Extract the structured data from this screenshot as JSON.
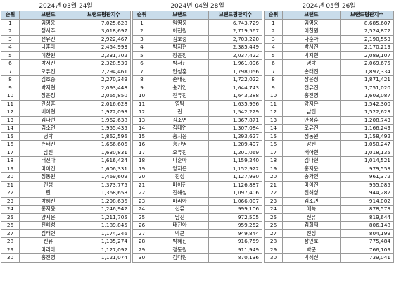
{
  "headers": {
    "rank": "순위",
    "brand": "브랜드",
    "score": "브랜드평판지수"
  },
  "panels": [
    {
      "date": "2024년 03월 24일",
      "rows": [
        [
          "1",
          "임영웅",
          "7,025,628"
        ],
        [
          "2",
          "정서주",
          "3,018,697"
        ],
        [
          "3",
          "전유진",
          "2,922,467"
        ],
        [
          "4",
          "나훈아",
          "2,454,993"
        ],
        [
          "5",
          "이찬원",
          "2,331,702"
        ],
        [
          "6",
          "박서진",
          "2,328,539"
        ],
        [
          "7",
          "오유진",
          "2,294,461"
        ],
        [
          "8",
          "김호중",
          "2,270,349"
        ],
        [
          "9",
          "박지현",
          "2,093,448"
        ],
        [
          "10",
          "장윤정",
          "2,065,850"
        ],
        [
          "11",
          "안성훈",
          "2,016,628"
        ],
        [
          "12",
          "배아현",
          "1,972,093"
        ],
        [
          "13",
          "김다현",
          "1,962,638"
        ],
        [
          "14",
          "김소연",
          "1,955,435"
        ],
        [
          "15",
          "영탁",
          "1,862,596"
        ],
        [
          "16",
          "손태진",
          "1,666,606"
        ],
        [
          "17",
          "남진",
          "1,630,831"
        ],
        [
          "18",
          "태진아",
          "1,616,424"
        ],
        [
          "19",
          "마이진",
          "1,606,331"
        ],
        [
          "20",
          "정동원",
          "1,469,609"
        ],
        [
          "21",
          "진성",
          "1,373,775"
        ],
        [
          "22",
          "린",
          "1,368,658"
        ],
        [
          "23",
          "박혜신",
          "1,298,636"
        ],
        [
          "24",
          "홍지윤",
          "1,246,942"
        ],
        [
          "25",
          "양지은",
          "1,211,705"
        ],
        [
          "26",
          "진해성",
          "1,189,845"
        ],
        [
          "27",
          "김태연",
          "1,174,246"
        ],
        [
          "28",
          "신유",
          "1,135,274"
        ],
        [
          "29",
          "마리아",
          "1,127,092"
        ],
        [
          "30",
          "홍진영",
          "1,121,074"
        ]
      ]
    },
    {
      "date": "2024년 04월 28일",
      "rows": [
        [
          "1",
          "임영웅",
          "6,743,729"
        ],
        [
          "2",
          "이찬원",
          "2,719,567"
        ],
        [
          "3",
          "김호중",
          "2,703,220"
        ],
        [
          "4",
          "박지현",
          "2,385,449"
        ],
        [
          "5",
          "장윤정",
          "2,037,422"
        ],
        [
          "6",
          "박서진",
          "1,961,096"
        ],
        [
          "7",
          "안성훈",
          "1,798,056"
        ],
        [
          "8",
          "손태진",
          "1,722,022"
        ],
        [
          "9",
          "송가인",
          "1,644,743"
        ],
        [
          "10",
          "전유진",
          "1,643,288"
        ],
        [
          "11",
          "영탁",
          "1,635,956"
        ],
        [
          "12",
          "린",
          "1,542,229"
        ],
        [
          "13",
          "김소연",
          "1,367,871"
        ],
        [
          "14",
          "김태연",
          "1,307,084"
        ],
        [
          "15",
          "홍지윤",
          "1,293,627"
        ],
        [
          "16",
          "홍진영",
          "1,289,497"
        ],
        [
          "17",
          "오유진",
          "1,201,069"
        ],
        [
          "18",
          "나훈아",
          "1,159,240"
        ],
        [
          "19",
          "양지은",
          "1,152,922"
        ],
        [
          "20",
          "진성",
          "1,127,930"
        ],
        [
          "21",
          "마이진",
          "1,126,887"
        ],
        [
          "22",
          "진해성",
          "1,097,406"
        ],
        [
          "23",
          "마리아",
          "1,066,007"
        ],
        [
          "24",
          "신유",
          "999,106"
        ],
        [
          "25",
          "남진",
          "972,505"
        ],
        [
          "26",
          "태진아",
          "959,252"
        ],
        [
          "27",
          "박군",
          "949,844"
        ],
        [
          "28",
          "박혜신",
          "916,759"
        ],
        [
          "29",
          "정동원",
          "911,949"
        ],
        [
          "30",
          "김다현",
          "870,136"
        ]
      ]
    },
    {
      "date": "2024년 05월 26일",
      "rows": [
        [
          "1",
          "임영웅",
          "8,685,607"
        ],
        [
          "2",
          "이찬원",
          "2,524,872"
        ],
        [
          "3",
          "나훈아",
          "2,190,553"
        ],
        [
          "4",
          "박서진",
          "2,170,219"
        ],
        [
          "5",
          "박지현",
          "2,089,107"
        ],
        [
          "6",
          "영탁",
          "2,069,675"
        ],
        [
          "7",
          "손태진",
          "1,897,334"
        ],
        [
          "8",
          "장윤정",
          "1,871,421"
        ],
        [
          "9",
          "전유진",
          "1,751,020"
        ],
        [
          "10",
          "홍진영",
          "1,603,087"
        ],
        [
          "11",
          "양지은",
          "1,542,300"
        ],
        [
          "12",
          "남진",
          "1,522,623"
        ],
        [
          "13",
          "안성훈",
          "1,208,743"
        ],
        [
          "14",
          "오유진",
          "1,166,249"
        ],
        [
          "15",
          "정동원",
          "1,158,492"
        ],
        [
          "16",
          "강진",
          "1,050,247"
        ],
        [
          "17",
          "배아현",
          "1,018,135"
        ],
        [
          "18",
          "김다현",
          "1,014,521"
        ],
        [
          "19",
          "홍지윤",
          "979,553"
        ],
        [
          "20",
          "송가인",
          "961,372"
        ],
        [
          "21",
          "마이진",
          "955,085"
        ],
        [
          "22",
          "진해성",
          "944,282"
        ],
        [
          "23",
          "김소연",
          "914,002"
        ],
        [
          "24",
          "에녹",
          "878,573"
        ],
        [
          "25",
          "신유",
          "819,644"
        ],
        [
          "26",
          "김희재",
          "806,148"
        ],
        [
          "27",
          "진성",
          "804,199"
        ],
        [
          "28",
          "장민호",
          "775,484"
        ],
        [
          "29",
          "박군",
          "766,109"
        ],
        [
          "30",
          "박혜신",
          "739,041"
        ]
      ]
    }
  ]
}
